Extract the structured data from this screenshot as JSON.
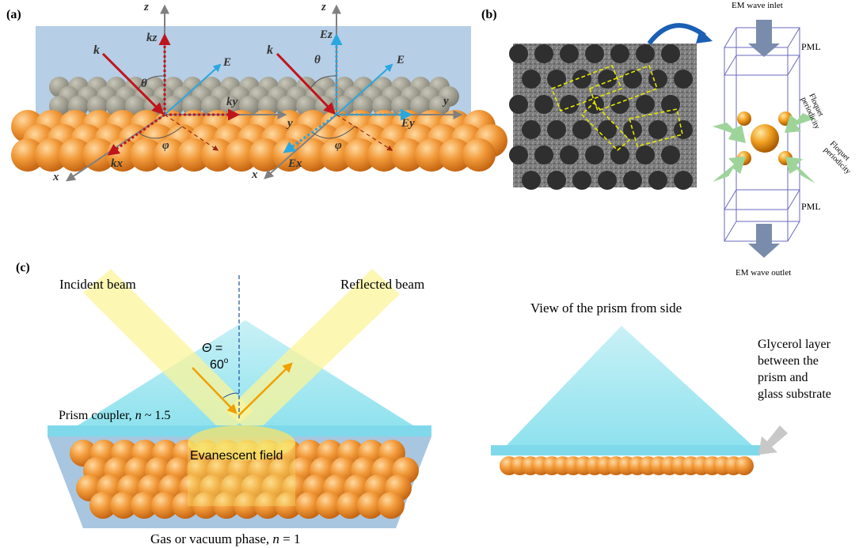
{
  "panels": {
    "a": {
      "label": "(a)",
      "left_axes": {
        "z": "z",
        "y": "y",
        "x": "x",
        "k": "k",
        "kz": "kz",
        "ky": "ky",
        "kx": "kx",
        "E": "E",
        "theta": "θ",
        "phi": "φ"
      },
      "right_axes": {
        "z": "z",
        "y": "y",
        "x": "x",
        "k": "k",
        "Ez": "Ez",
        "Ey": "Ey",
        "Ex": "Ex",
        "E": "E",
        "theta": "θ",
        "phi": "φ"
      }
    },
    "b": {
      "label": "(b)",
      "inlet": "EM wave inlet",
      "outlet": "EM wave outlet",
      "pml_top": "PML",
      "pml_bottom": "PML",
      "floquet_1a": "Floquet",
      "floquet_1b": "periodicity",
      "floquet_2a": "Floquet",
      "floquet_2b": "periodicity"
    },
    "c": {
      "label": "(c)",
      "incident": "Incident beam",
      "reflected": "Reflected beam",
      "angle_symbol": "Θ",
      "angle_eq": " =",
      "angle_value": "60",
      "angle_unit": "o",
      "prism_label": "Prism coupler, ",
      "prism_n": "n",
      "prism_value": " ~ 1.5",
      "evanescent": "Evanescent field",
      "gas_label": "Gas or vacuum phase, ",
      "gas_n": "n",
      "gas_value": " = 1",
      "side_view": "View of the prism from side",
      "glycerol_1": "Glycerol layer",
      "glycerol_2": "between the",
      "glycerol_3": "prism and",
      "glycerol_4": "glass substrate"
    }
  },
  "colors": {
    "sphere": "#e8892a",
    "kvector": "#c0141c",
    "evector": "#2aa7e0",
    "prism": "#a7e8f0",
    "beam": "#fdf6a0",
    "axis": "#808080"
  }
}
